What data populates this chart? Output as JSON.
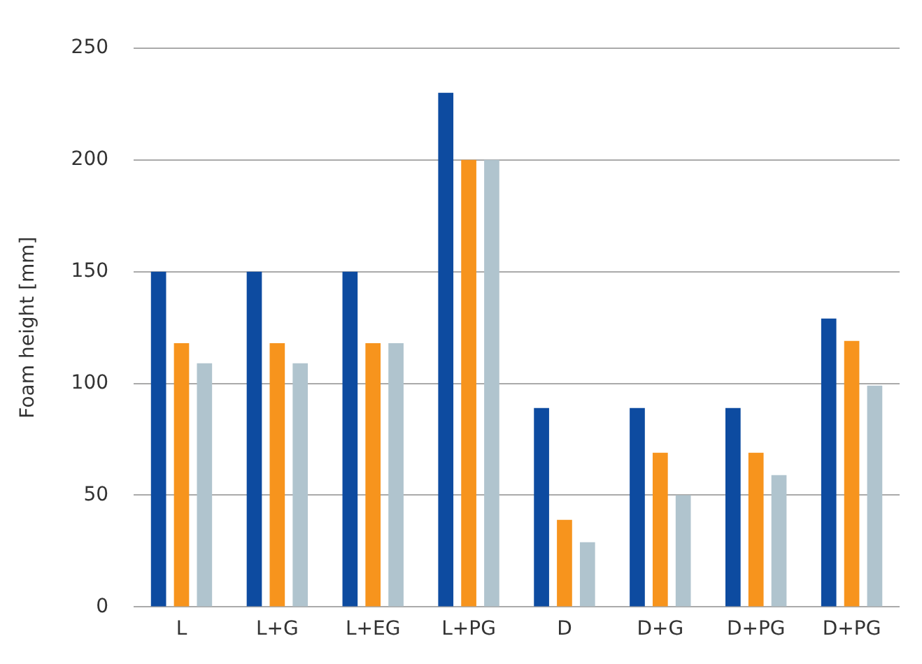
{
  "chart_data": {
    "type": "bar",
    "ylabel": "Foam height [mm]",
    "categories": [
      "L",
      "L+G",
      "L+EG",
      "L+PG",
      "D",
      "D+G",
      "D+PG",
      "D+PG"
    ],
    "series": [
      {
        "color": "#0d4ba0",
        "values": [
          150,
          150,
          150,
          230,
          89,
          89,
          89,
          129
        ]
      },
      {
        "color": "#f7941d",
        "values": [
          118,
          118,
          118,
          200,
          39,
          69,
          69,
          119
        ]
      },
      {
        "color": "#b0c4ce",
        "values": [
          109,
          109,
          118,
          200,
          29,
          50,
          59,
          99
        ]
      }
    ],
    "ylim": [
      0,
      250
    ],
    "yticks": [
      0,
      50,
      100,
      150,
      200,
      250
    ],
    "grid": "y",
    "legend": false
  }
}
